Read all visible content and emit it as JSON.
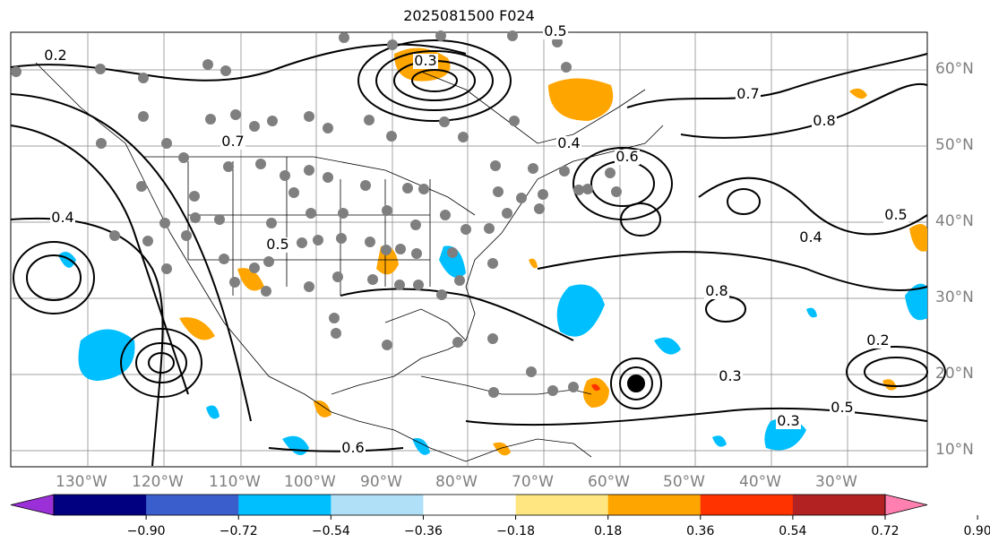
{
  "title": "2025081500 F024",
  "map": {
    "lon_labels": [
      "130°W",
      "120°W",
      "110°W",
      "100°W",
      "90°W",
      "80°W",
      "70°W",
      "60°W",
      "50°W",
      "40°W",
      "30°W"
    ],
    "lat_labels": [
      "60°N",
      "50°N",
      "40°N",
      "30°N",
      "20°N",
      "10°N"
    ],
    "contour_labels": [
      "0.2",
      "0.3",
      "0.4",
      "0.5",
      "0.6",
      "0.7",
      "0.8",
      "0.2",
      "0.5",
      "0.3",
      "0.4",
      "0.5",
      "0.3",
      "0.4",
      "0.5",
      "0.6",
      "0.7",
      "0.8"
    ]
  },
  "colorbar": {
    "ticks": [
      "−0.90",
      "−0.72",
      "−0.54",
      "−0.36",
      "−0.18",
      "0.18",
      "0.36",
      "0.54",
      "0.72",
      "0.90"
    ],
    "colors": [
      "#9b30d9",
      "#000080",
      "#3a5fcd",
      "#00bfff",
      "#b0e0f8",
      "#ffffff",
      "#ffe680",
      "#ffa500",
      "#ff3300",
      "#b22222",
      "#ff80b0"
    ],
    "extend": "both"
  }
}
